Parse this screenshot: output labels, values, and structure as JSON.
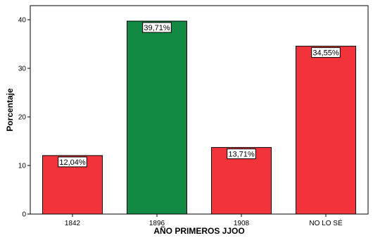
{
  "chart_data": {
    "type": "bar",
    "title": "",
    "xlabel": "AÑO PRIMEROS JJOO",
    "ylabel": "Porcentaje",
    "categories": [
      "1842",
      "1896",
      "1908",
      "NO LO SÉ"
    ],
    "values": [
      12.04,
      39.71,
      13.71,
      34.55
    ],
    "data_labels": [
      "12,04%",
      "39,71%",
      "13,71%",
      "34,55%"
    ],
    "bar_colors": [
      "#f2333a",
      "#138a43",
      "#f2333a",
      "#f2333a"
    ],
    "ylim": [
      0,
      43
    ],
    "yticks": [
      0,
      10,
      20,
      30,
      40
    ],
    "ytick_labels": [
      "0",
      "10",
      "20",
      "30",
      "40"
    ],
    "grid": false,
    "legend": "none"
  }
}
